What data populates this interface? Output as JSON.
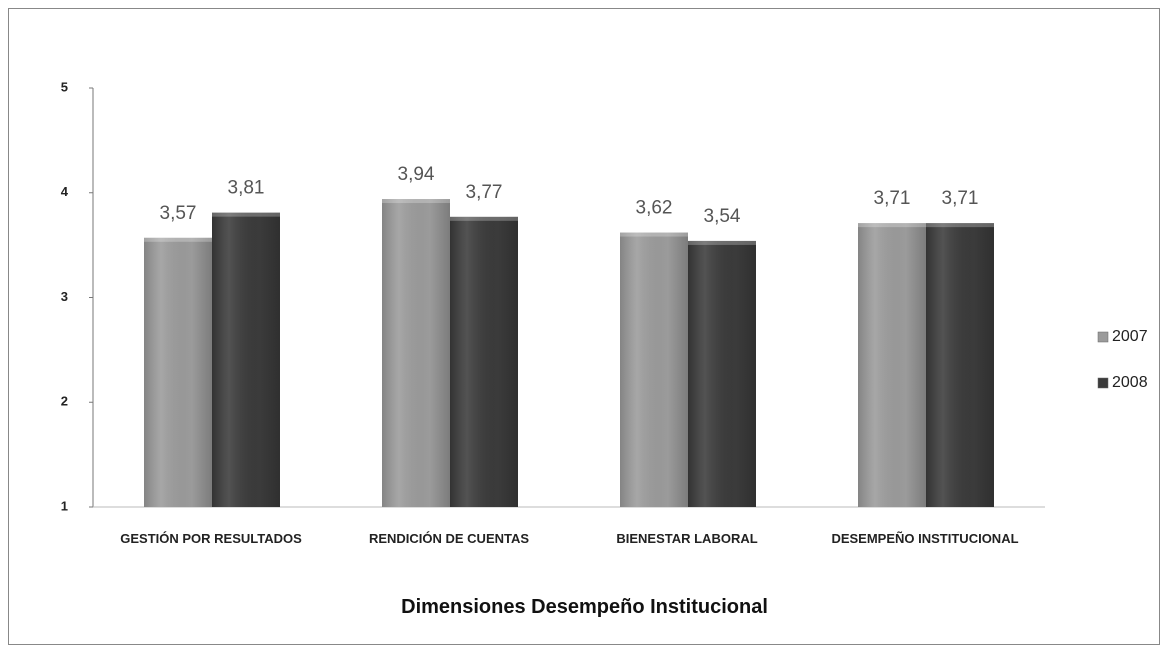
{
  "chart_data": {
    "type": "bar",
    "x_label": "Dimensiones Desempeño Institucional",
    "categories": [
      "GESTIÓN POR RESULTADOS",
      "RENDICIÓN DE CUENTAS",
      "BIENESTAR LABORAL",
      "DESEMPEÑO INSTITUCIONAL"
    ],
    "series": [
      {
        "name": "2007",
        "color": "#9b9b9b",
        "values": [
          3.57,
          3.94,
          3.62,
          3.71
        ],
        "value_labels": [
          "3,57",
          "3,94",
          "3,62",
          "3,71"
        ]
      },
      {
        "name": "2008",
        "color": "#3b3b3b",
        "values": [
          3.81,
          3.77,
          3.54,
          3.71
        ],
        "value_labels": [
          "3,81",
          "3,77",
          "3,54",
          "3,71"
        ]
      }
    ],
    "ylim": [
      1,
      5
    ],
    "yticks": [
      1,
      2,
      3,
      4,
      5
    ],
    "grid": false,
    "legend": "right"
  }
}
